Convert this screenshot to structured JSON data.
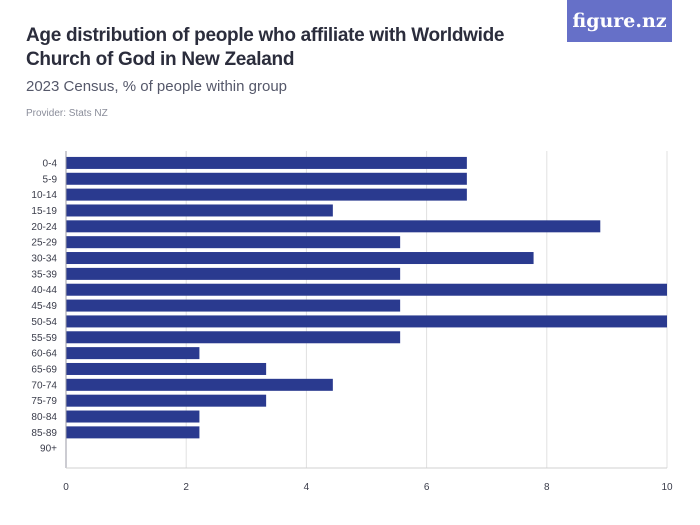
{
  "header": {
    "title": "Age distribution of people who affiliate with Worldwide Church of God in New Zealand",
    "subtitle": "2023 Census, % of people within group",
    "provider": "Provider: Stats NZ",
    "logo_text": "figure.nz"
  },
  "colors": {
    "bar": "#2a3a8f",
    "grid": "#e0e0e0",
    "logo_bg": "#6670c8"
  },
  "chart_data": {
    "type": "bar",
    "orientation": "horizontal",
    "categories": [
      "0-4",
      "5-9",
      "10-14",
      "15-19",
      "20-24",
      "25-29",
      "30-34",
      "35-39",
      "40-44",
      "45-49",
      "50-54",
      "55-59",
      "60-64",
      "65-69",
      "70-74",
      "75-79",
      "80-84",
      "85-89",
      "90+"
    ],
    "values": [
      6.67,
      6.67,
      6.67,
      4.44,
      8.89,
      5.56,
      7.78,
      5.56,
      10.0,
      5.56,
      10.0,
      5.56,
      2.22,
      3.33,
      4.44,
      3.33,
      2.22,
      2.22,
      0
    ],
    "xlim": [
      0,
      10
    ],
    "xticks": [
      0,
      2,
      4,
      6,
      8,
      10
    ],
    "grid": "vertical",
    "legend": "none"
  }
}
